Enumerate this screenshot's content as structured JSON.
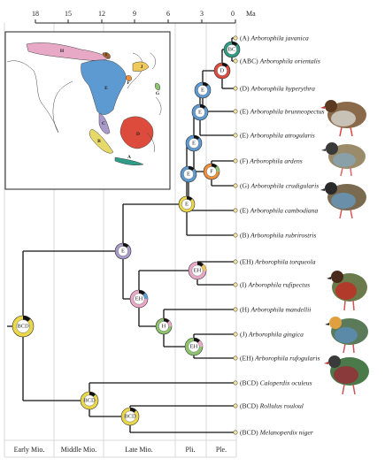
{
  "axis": {
    "unit": "Ma",
    "ticks": [
      "18",
      "15",
      "12",
      "9",
      "6",
      "3",
      "0"
    ]
  },
  "epochs": [
    "Early Mio.",
    "Middle Mio.",
    "Late Mio.",
    "Pli.",
    "Ple."
  ],
  "tips": [
    {
      "code": "(A)",
      "name": "Arborophila javanica"
    },
    {
      "code": "(ABC)",
      "name": "Arborophila orientalis"
    },
    {
      "code": "(D)",
      "name": "Arborophila hyperythra"
    },
    {
      "code": "(E)",
      "name": "Arborophila brunneopectus"
    },
    {
      "code": "(E)",
      "name": "Arborophila atrogularis"
    },
    {
      "code": "(F)",
      "name": "Arborophila ardens"
    },
    {
      "code": "(G)",
      "name": "Arborophila crudigularis"
    },
    {
      "code": "(E)",
      "name": "Arborophila cambodiana"
    },
    {
      "code": "(B)",
      "name": "Arborophila rubrirostris"
    },
    {
      "code": "(EH)",
      "name": "Arborophila torqueola"
    },
    {
      "code": "(I)",
      "name": "Arborophila rufipectus"
    },
    {
      "code": "(H)",
      "name": "Arborophila mandellii"
    },
    {
      "code": "(J)",
      "name": "Arborophila gingica"
    },
    {
      "code": "(EH)",
      "name": "Arborophila rufogularis"
    },
    {
      "code": "(BCD)",
      "name": "Caloperdix oculeus"
    },
    {
      "code": "(BCD)",
      "name": "Rollulus rouloul"
    },
    {
      "code": "(BCD)",
      "name": "Melanoperdix niger"
    }
  ],
  "nodes": {
    "bc": "BC",
    "d": "D",
    "e1": "E",
    "e2": "E",
    "e3": "E",
    "f": "F",
    "e4": "E",
    "e5": "E",
    "e6": "E",
    "eh1": "EH",
    "eh2": "EH",
    "h": "H",
    "eh3": "EH",
    "root": "BCD",
    "bcd2": "BCD",
    "bcd3": "BCD"
  },
  "map_regions": [
    "A",
    "B",
    "C",
    "D",
    "E",
    "F",
    "G",
    "H",
    "I",
    "J"
  ],
  "colors": {
    "A": "#2e9c86",
    "B": "#e6d96a",
    "C": "#a99ac9",
    "D": "#dd4b3d",
    "E": "#5d9ad2",
    "F": "#f08f3a",
    "G": "#8ec46e",
    "H": "#e8a9c6",
    "I": "#a0622a",
    "J": "#eec95a",
    "BCD": "#ead84a",
    "ocean": "#ffffff"
  }
}
